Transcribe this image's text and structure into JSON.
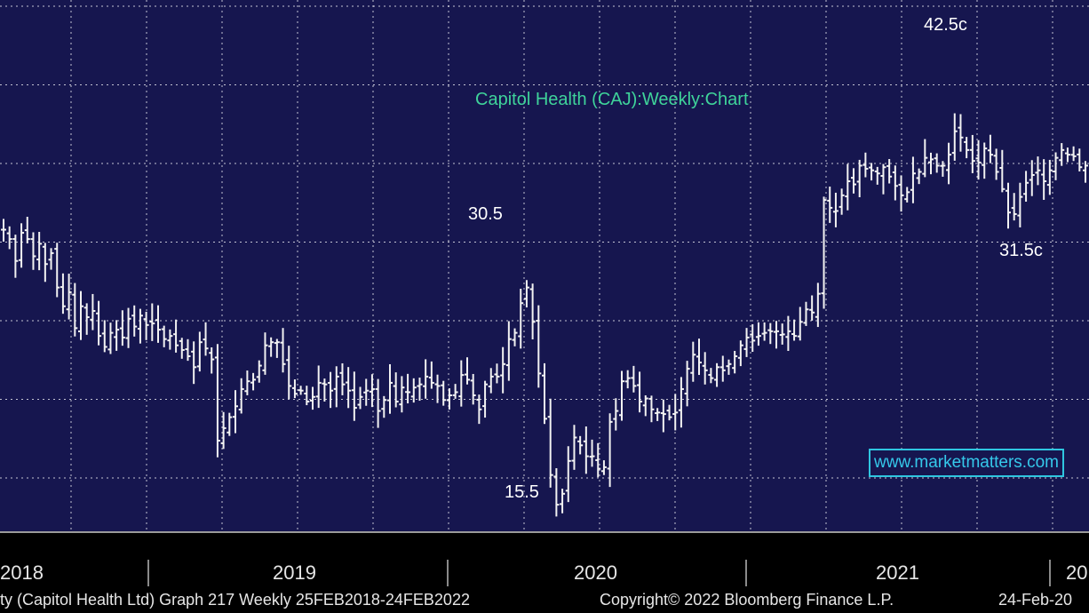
{
  "chart_data": {
    "type": "candlestick-bar",
    "title": "Capitol Health (CAJ):Weekly:Chart",
    "x_labels": [
      "2018",
      "2019",
      "2020",
      "2021",
      "20"
    ],
    "annotations": [
      {
        "text": "30.5",
        "x": "2019-11",
        "y": 30.5
      },
      {
        "text": "15.5",
        "x": "2020-03",
        "y": 15.5
      },
      {
        "text": "42.5c",
        "x": "2021-03",
        "y": 42.5
      },
      {
        "text": "31.5c",
        "x": "2021-06",
        "y": 31.5
      }
    ],
    "ylim": [
      14.5,
      48.5
    ],
    "grid": true,
    "watermark": "www.marketmatters.com",
    "footer_left": "ty (Capitol Health Ltd) Graph 217  Weekly 25FEB2018-24FEB2022",
    "footer_center": "Copyright© 2022 Bloomberg Finance L.P.",
    "footer_right": "24-Feb-20",
    "weekly_closes": [
      33.8,
      33.2,
      31.8,
      33.6,
      33.2,
      32.1,
      32.9,
      31.6,
      32.3,
      30.1,
      28.9,
      29.8,
      27.5,
      28.9,
      28.2,
      28.6,
      27.0,
      26.3,
      27.2,
      27.4,
      26.9,
      28.1,
      27.6,
      28.3,
      27.7,
      27.8,
      27.4,
      26.8,
      27.0,
      26.4,
      26.1,
      25.7,
      25.0,
      26.6,
      26.2,
      25.5,
      20.3,
      21.1,
      21.8,
      22.5,
      23.6,
      24.1,
      24.2,
      25.1,
      26.4,
      26.6,
      26.6,
      25.2,
      23.8,
      23.3,
      23.5,
      22.8,
      23.1,
      24.0,
      23.9,
      23.5,
      24.4,
      23.9,
      23.5,
      22.4,
      23.1,
      23.5,
      23.6,
      22.2,
      22.9,
      24.0,
      22.8,
      23.7,
      23.4,
      23.7,
      23.9,
      24.4,
      24.0,
      23.8,
      22.9,
      23.2,
      23.4,
      24.5,
      24.2,
      23.2,
      22.3,
      23.9,
      24.4,
      24.4,
      25.2,
      26.8,
      27.2,
      29.1,
      30.1,
      27.9,
      24.6,
      21.7,
      18.1,
      16.2,
      16.9,
      19.0,
      20.5,
      20.0,
      19.3,
      19.3,
      18.5,
      18.6,
      21.5,
      22.2,
      24.1,
      24.3,
      23.8,
      22.8,
      23.0,
      22.3,
      22.1,
      22.0,
      21.8,
      22.1,
      23.6,
      24.9,
      25.8,
      25.3,
      24.8,
      24.3,
      25.0,
      24.8,
      25.2,
      25.7,
      26.4,
      26.9,
      26.7,
      27.0,
      27.2,
      27.3,
      27.3,
      27.1,
      27.3,
      27.0,
      27.9,
      28.7,
      28.5,
      29.7,
      35.7,
      35.2,
      35.0,
      36.0,
      36.9,
      36.7,
      37.9,
      37.7,
      37.6,
      37.4,
      37.8,
      37.2,
      36.6,
      36.0,
      36.2,
      37.4,
      37.5,
      38.4,
      38.3,
      37.9,
      37.9,
      38.6,
      40.1,
      39.7,
      38.9,
      38.2,
      38.1,
      39.0,
      38.6,
      37.5,
      36.4,
      34.9,
      34.8,
      35.9,
      36.8,
      37.3,
      37.6,
      36.9,
      37.6,
      38.4,
      38.9,
      38.6,
      38.5,
      37.8,
      37.9
    ]
  }
}
